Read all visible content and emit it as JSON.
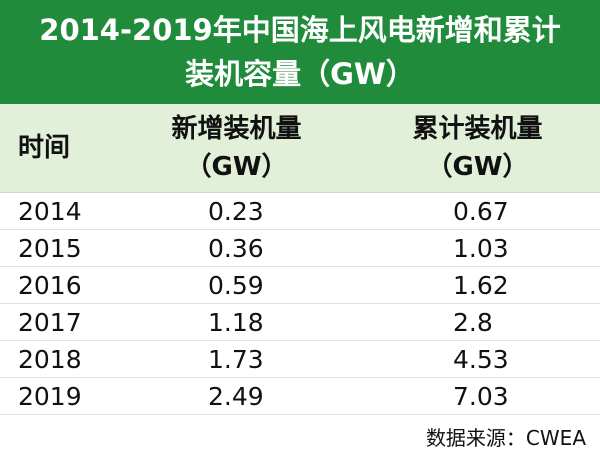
{
  "header": {
    "title": [
      "2014-2019年中国海上风电新增和累计",
      "装机容量（GW）"
    ]
  },
  "table": {
    "columns": [
      [
        "时间"
      ],
      [
        "新增装机量",
        "（GW）"
      ],
      [
        "累计装机量",
        "（GW）"
      ]
    ],
    "rows": [
      [
        2014,
        0.23,
        0.67
      ],
      [
        2015,
        0.36,
        1.03
      ],
      [
        2016,
        0.59,
        1.62
      ],
      [
        2017,
        1.18,
        2.8
      ],
      [
        2018,
        1.73,
        4.53
      ],
      [
        2019,
        2.49,
        7.03
      ]
    ]
  },
  "footer": {
    "source": "数据来源：CWEA"
  }
}
